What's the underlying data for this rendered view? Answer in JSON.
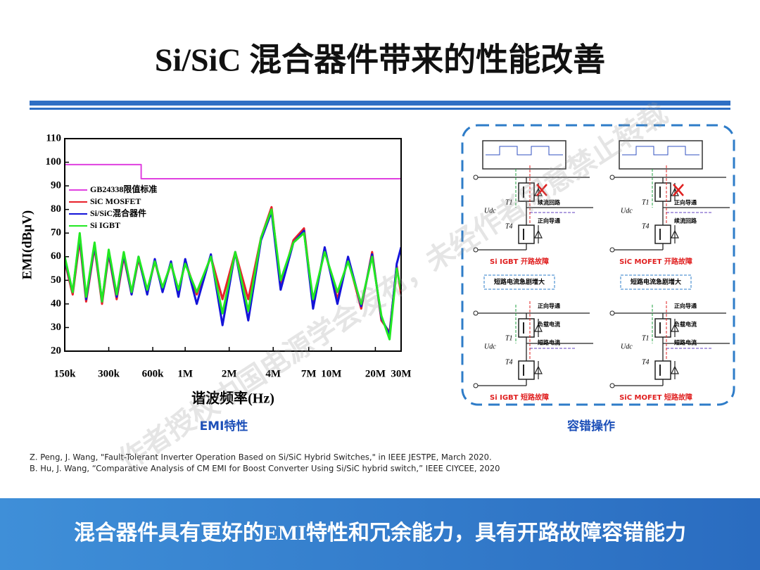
{
  "title": "Si/SiC 混合器件带来的性能改善",
  "chart_data": {
    "type": "line",
    "log_x": true,
    "x_label": "谐波频率(Hz)",
    "y_label": "EMI(dBμV)",
    "caption": "EMI特性",
    "legend_position": "upper left",
    "xlim": [
      150000,
      30000000
    ],
    "xticks": [
      {
        "value": 150000,
        "label": "150k"
      },
      {
        "value": 300000,
        "label": "300k"
      },
      {
        "value": 600000,
        "label": "600k"
      },
      {
        "value": 1000000,
        "label": "1M"
      },
      {
        "value": 2000000,
        "label": "2M"
      },
      {
        "value": 4000000,
        "label": "4M"
      },
      {
        "value": 7000000,
        "label": "7M"
      },
      {
        "value": 10000000,
        "label": "10M"
      },
      {
        "value": 20000000,
        "label": "20M"
      },
      {
        "value": 30000000,
        "label": "30M"
      }
    ],
    "ylim": [
      20,
      110
    ],
    "yticks": [
      20,
      30,
      40,
      50,
      60,
      70,
      80,
      90,
      100,
      110
    ],
    "series": [
      {
        "name": "GB24338限值标准",
        "color": "#e040e0",
        "width": 2,
        "x": [
          150000,
          500000,
          500000,
          30000000
        ],
        "values": [
          99,
          99,
          93,
          93
        ]
      },
      {
        "name": "SiC MOSFET",
        "color": "#e8202a",
        "width": 3,
        "x": [
          150000,
          170000,
          190000,
          210000,
          240000,
          270000,
          300000,
          340000,
          380000,
          430000,
          480000,
          550000,
          620000,
          700000,
          800000,
          900000,
          1000000,
          1200000,
          1500000,
          1800000,
          2200000,
          2700000,
          3300000,
          3900000,
          4500000,
          5500000,
          6500000,
          7500000,
          9000000,
          11000000,
          13000000,
          16000000,
          19000000,
          22000000,
          25000000,
          28000000,
          30000000
        ],
        "values": [
          58,
          44,
          67,
          41,
          64,
          40,
          61,
          42,
          60,
          44,
          59,
          45,
          58,
          46,
          57,
          45,
          58,
          44,
          60,
          42,
          62,
          42,
          68,
          81,
          48,
          67,
          72,
          40,
          63,
          42,
          59,
          38,
          62,
          33,
          28,
          56,
          44
        ]
      },
      {
        "name": "Si/SiC混合器件",
        "color": "#1414d8",
        "width": 3,
        "x": [
          150000,
          170000,
          190000,
          210000,
          240000,
          270000,
          300000,
          340000,
          380000,
          430000,
          480000,
          550000,
          620000,
          700000,
          800000,
          900000,
          1000000,
          1200000,
          1500000,
          1800000,
          2200000,
          2700000,
          3300000,
          3900000,
          4500000,
          5500000,
          6500000,
          7500000,
          9000000,
          11000000,
          13000000,
          16000000,
          19000000,
          22000000,
          25000000,
          28000000,
          30000000
        ],
        "values": [
          59,
          45,
          69,
          42,
          65,
          41,
          62,
          43,
          61,
          44,
          60,
          44,
          59,
          45,
          58,
          43,
          59,
          40,
          61,
          31,
          62,
          33,
          67,
          79,
          46,
          66,
          71,
          38,
          64,
          40,
          60,
          39,
          61,
          34,
          27,
          57,
          64
        ]
      },
      {
        "name": "Si IGBT",
        "color": "#22e822",
        "width": 3,
        "x": [
          150000,
          170000,
          190000,
          210000,
          240000,
          270000,
          300000,
          340000,
          380000,
          430000,
          480000,
          550000,
          620000,
          700000,
          800000,
          900000,
          1000000,
          1200000,
          1500000,
          1800000,
          2200000,
          2700000,
          3300000,
          3900000,
          4500000,
          5500000,
          6500000,
          7500000,
          9000000,
          11000000,
          13000000,
          16000000,
          19000000,
          22000000,
          25000000,
          28000000,
          30000000
        ],
        "values": [
          60,
          45,
          70,
          43,
          66,
          41,
          63,
          44,
          62,
          45,
          60,
          46,
          58,
          47,
          57,
          46,
          57,
          45,
          60,
          36,
          62,
          37,
          68,
          80,
          50,
          66,
          70,
          42,
          62,
          45,
          58,
          40,
          60,
          35,
          25,
          55,
          46
        ]
      }
    ]
  },
  "diagram": {
    "caption": "容错操作",
    "panels": [
      {
        "caption": "Si IGBT 开路故障",
        "notes": [
          "续流回路",
          "正向导通"
        ],
        "symbols": [
          "Udc",
          "T1",
          "T4"
        ]
      },
      {
        "caption": "SiC MOFET 开路故障",
        "notes": [
          "正向导通",
          "续流回路"
        ],
        "symbols": [
          "Udc",
          "T1",
          "T4"
        ]
      },
      {
        "caption": "Si IGBT 短路故障",
        "box_label": "短路电流急剧增大",
        "notes": [
          "正向导通",
          "负载电流",
          "短路电流"
        ],
        "symbols": [
          "Udc",
          "T1",
          "T4"
        ]
      },
      {
        "caption": "SiC MOFET 短路故障",
        "box_label": "短路电流急剧增大",
        "notes": [
          "正向导通",
          "负载电流",
          "短路电流"
        ],
        "symbols": [
          "Udc",
          "T1",
          "T4"
        ]
      }
    ]
  },
  "references": [
    "Z. Peng, J. Wang, \"Fault-Tolerant Inverter Operation Based on Si/SiC Hybrid Switches,\" in IEEE JESTPE, March 2020.",
    "B. Hu, J. Wang, “Comparative Analysis of CM EMI for Boost Converter Using Si/SiC hybrid switch,” IEEE CIYCEE, 2020"
  ],
  "watermark": "作者授权中国电源学会发布，未经作者同意禁止转载",
  "banner": "混合器件具有更好的EMI特性和冗余能力，具有开路故障容错能力"
}
